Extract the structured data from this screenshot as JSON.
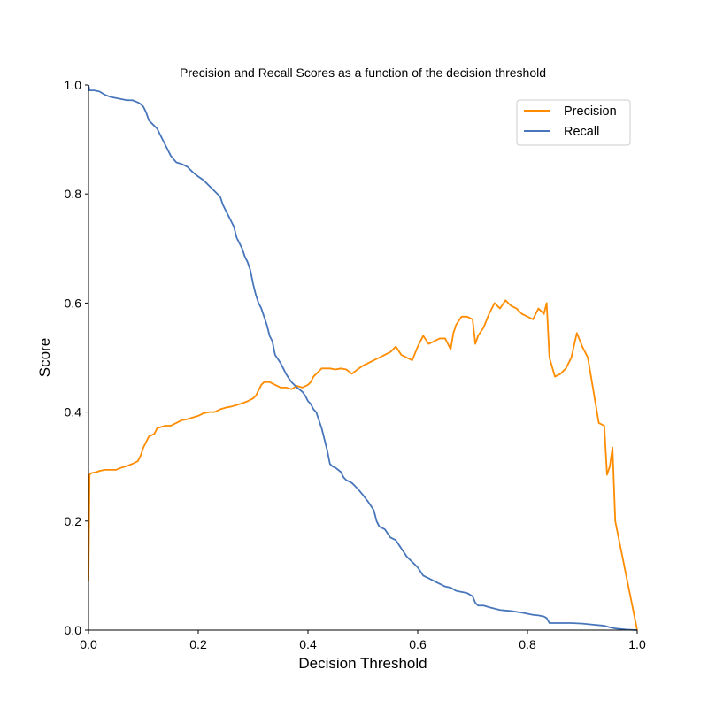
{
  "chart_data": {
    "type": "line",
    "title": "Precision and Recall Scores as a function of the decision threshold",
    "xlabel": "Decision Threshold",
    "ylabel": "Score",
    "xlim": [
      0.0,
      1.0
    ],
    "ylim": [
      0.0,
      1.0
    ],
    "xticks": [
      0.0,
      0.2,
      0.4,
      0.6,
      0.8,
      1.0
    ],
    "yticks": [
      0.0,
      0.2,
      0.4,
      0.6,
      0.8,
      1.0
    ],
    "xtick_labels": [
      "0.0",
      "0.2",
      "0.4",
      "0.6",
      "0.8",
      "1.0"
    ],
    "ytick_labels": [
      "0.0",
      "0.2",
      "0.4",
      "0.6",
      "0.8",
      "1.0"
    ],
    "grid": false,
    "legend_position": "top-right",
    "series": [
      {
        "name": "Precision",
        "color": "#ff8c00",
        "x": [
          0.0,
          0.002,
          0.005,
          0.015,
          0.02,
          0.03,
          0.05,
          0.06,
          0.07,
          0.08,
          0.09,
          0.095,
          0.1,
          0.105,
          0.11,
          0.12,
          0.125,
          0.13,
          0.14,
          0.15,
          0.16,
          0.17,
          0.18,
          0.19,
          0.2,
          0.21,
          0.22,
          0.23,
          0.24,
          0.25,
          0.26,
          0.27,
          0.28,
          0.29,
          0.3,
          0.305,
          0.31,
          0.315,
          0.32,
          0.33,
          0.34,
          0.35,
          0.36,
          0.37,
          0.38,
          0.39,
          0.4,
          0.405,
          0.41,
          0.42,
          0.425,
          0.43,
          0.44,
          0.45,
          0.46,
          0.47,
          0.48,
          0.49,
          0.5,
          0.51,
          0.52,
          0.53,
          0.54,
          0.55,
          0.56,
          0.57,
          0.58,
          0.59,
          0.6,
          0.61,
          0.62,
          0.63,
          0.64,
          0.65,
          0.66,
          0.665,
          0.67,
          0.68,
          0.69,
          0.7,
          0.705,
          0.71,
          0.72,
          0.73,
          0.74,
          0.75,
          0.76,
          0.77,
          0.78,
          0.79,
          0.8,
          0.81,
          0.82,
          0.83,
          0.835,
          0.84,
          0.85,
          0.86,
          0.87,
          0.88,
          0.89,
          0.9,
          0.91,
          0.92,
          0.93,
          0.94,
          0.945,
          0.95,
          0.955,
          0.96,
          0.97,
          0.98,
          0.99,
          1.0
        ],
        "values": [
          0.09,
          0.285,
          0.288,
          0.29,
          0.292,
          0.294,
          0.294,
          0.298,
          0.301,
          0.305,
          0.31,
          0.32,
          0.335,
          0.345,
          0.355,
          0.36,
          0.37,
          0.372,
          0.375,
          0.375,
          0.38,
          0.385,
          0.387,
          0.39,
          0.393,
          0.398,
          0.4,
          0.4,
          0.405,
          0.408,
          0.41,
          0.413,
          0.416,
          0.42,
          0.425,
          0.43,
          0.44,
          0.45,
          0.455,
          0.455,
          0.45,
          0.445,
          0.445,
          0.442,
          0.448,
          0.445,
          0.45,
          0.455,
          0.465,
          0.475,
          0.48,
          0.48,
          0.48,
          0.478,
          0.48,
          0.478,
          0.47,
          0.478,
          0.485,
          0.49,
          0.495,
          0.5,
          0.505,
          0.51,
          0.52,
          0.505,
          0.5,
          0.495,
          0.52,
          0.54,
          0.525,
          0.53,
          0.535,
          0.535,
          0.515,
          0.545,
          0.56,
          0.575,
          0.575,
          0.57,
          0.525,
          0.54,
          0.555,
          0.58,
          0.6,
          0.59,
          0.605,
          0.595,
          0.59,
          0.58,
          0.575,
          0.57,
          0.59,
          0.58,
          0.6,
          0.5,
          0.465,
          0.47,
          0.48,
          0.5,
          0.545,
          0.52,
          0.5,
          0.44,
          0.38,
          0.375,
          0.285,
          0.3,
          0.335,
          0.2,
          0.15,
          0.1,
          0.05,
          0.0
        ]
      },
      {
        "name": "Recall",
        "color": "#4876bb",
        "x": [
          0.0,
          0.002,
          0.01,
          0.02,
          0.03,
          0.04,
          0.05,
          0.06,
          0.07,
          0.08,
          0.09,
          0.095,
          0.1,
          0.105,
          0.11,
          0.12,
          0.125,
          0.13,
          0.135,
          0.14,
          0.15,
          0.16,
          0.17,
          0.18,
          0.19,
          0.2,
          0.21,
          0.22,
          0.225,
          0.23,
          0.24,
          0.245,
          0.25,
          0.26,
          0.265,
          0.27,
          0.28,
          0.285,
          0.29,
          0.295,
          0.3,
          0.305,
          0.31,
          0.315,
          0.32,
          0.325,
          0.33,
          0.335,
          0.34,
          0.35,
          0.355,
          0.36,
          0.365,
          0.37,
          0.38,
          0.39,
          0.395,
          0.4,
          0.405,
          0.41,
          0.415,
          0.42,
          0.425,
          0.43,
          0.435,
          0.44,
          0.445,
          0.45,
          0.46,
          0.465,
          0.47,
          0.48,
          0.49,
          0.5,
          0.51,
          0.52,
          0.525,
          0.53,
          0.54,
          0.55,
          0.56,
          0.57,
          0.58,
          0.59,
          0.6,
          0.61,
          0.62,
          0.63,
          0.64,
          0.65,
          0.66,
          0.67,
          0.68,
          0.69,
          0.7,
          0.705,
          0.71,
          0.72,
          0.73,
          0.75,
          0.77,
          0.79,
          0.8,
          0.81,
          0.82,
          0.83,
          0.835,
          0.84,
          0.86,
          0.88,
          0.9,
          0.92,
          0.94,
          0.95,
          0.96,
          0.97,
          0.98,
          1.0
        ],
        "values": [
          1.0,
          0.99,
          0.99,
          0.988,
          0.982,
          0.978,
          0.976,
          0.974,
          0.972,
          0.972,
          0.968,
          0.965,
          0.96,
          0.95,
          0.935,
          0.925,
          0.92,
          0.91,
          0.9,
          0.89,
          0.87,
          0.858,
          0.855,
          0.85,
          0.84,
          0.832,
          0.825,
          0.815,
          0.81,
          0.805,
          0.795,
          0.78,
          0.77,
          0.75,
          0.74,
          0.72,
          0.7,
          0.685,
          0.675,
          0.66,
          0.635,
          0.615,
          0.6,
          0.59,
          0.575,
          0.56,
          0.54,
          0.53,
          0.505,
          0.49,
          0.48,
          0.47,
          0.462,
          0.455,
          0.445,
          0.437,
          0.43,
          0.42,
          0.415,
          0.405,
          0.4,
          0.385,
          0.37,
          0.35,
          0.33,
          0.305,
          0.3,
          0.298,
          0.29,
          0.28,
          0.275,
          0.27,
          0.26,
          0.248,
          0.235,
          0.22,
          0.2,
          0.19,
          0.185,
          0.17,
          0.165,
          0.15,
          0.135,
          0.125,
          0.115,
          0.1,
          0.095,
          0.09,
          0.085,
          0.08,
          0.078,
          0.072,
          0.07,
          0.068,
          0.062,
          0.05,
          0.045,
          0.045,
          0.042,
          0.037,
          0.035,
          0.032,
          0.03,
          0.028,
          0.027,
          0.025,
          0.022,
          0.013,
          0.013,
          0.013,
          0.012,
          0.01,
          0.008,
          0.005,
          0.003,
          0.002,
          0.001,
          0.0
        ]
      }
    ]
  }
}
